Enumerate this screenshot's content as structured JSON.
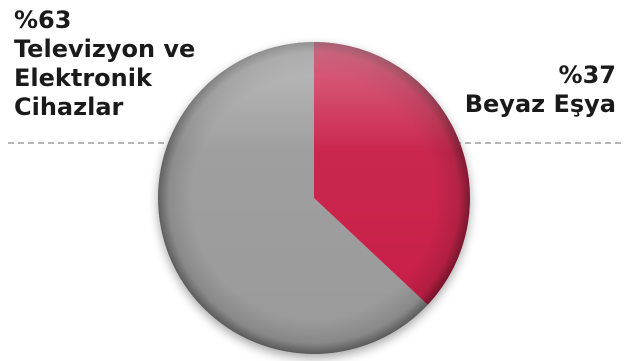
{
  "chart_data": {
    "type": "pie",
    "slices": [
      {
        "label": "Beyaz Eşya",
        "percent_label": "%37",
        "value": 37,
        "color": "#c81d45"
      },
      {
        "label": "Televizyon ve Elektronik Cihazlar",
        "percent_label": "%63",
        "value": 63,
        "color": "#9a9a9a"
      }
    ],
    "labels": {
      "left": {
        "percent": "%63",
        "line1": "Televizyon ve",
        "line2": "Elektronik",
        "line3": "Cihazlar"
      },
      "right": {
        "percent": "%37",
        "line1": "Beyaz Eşya"
      }
    },
    "legend": "none",
    "grid": false,
    "divider": "dashed"
  }
}
